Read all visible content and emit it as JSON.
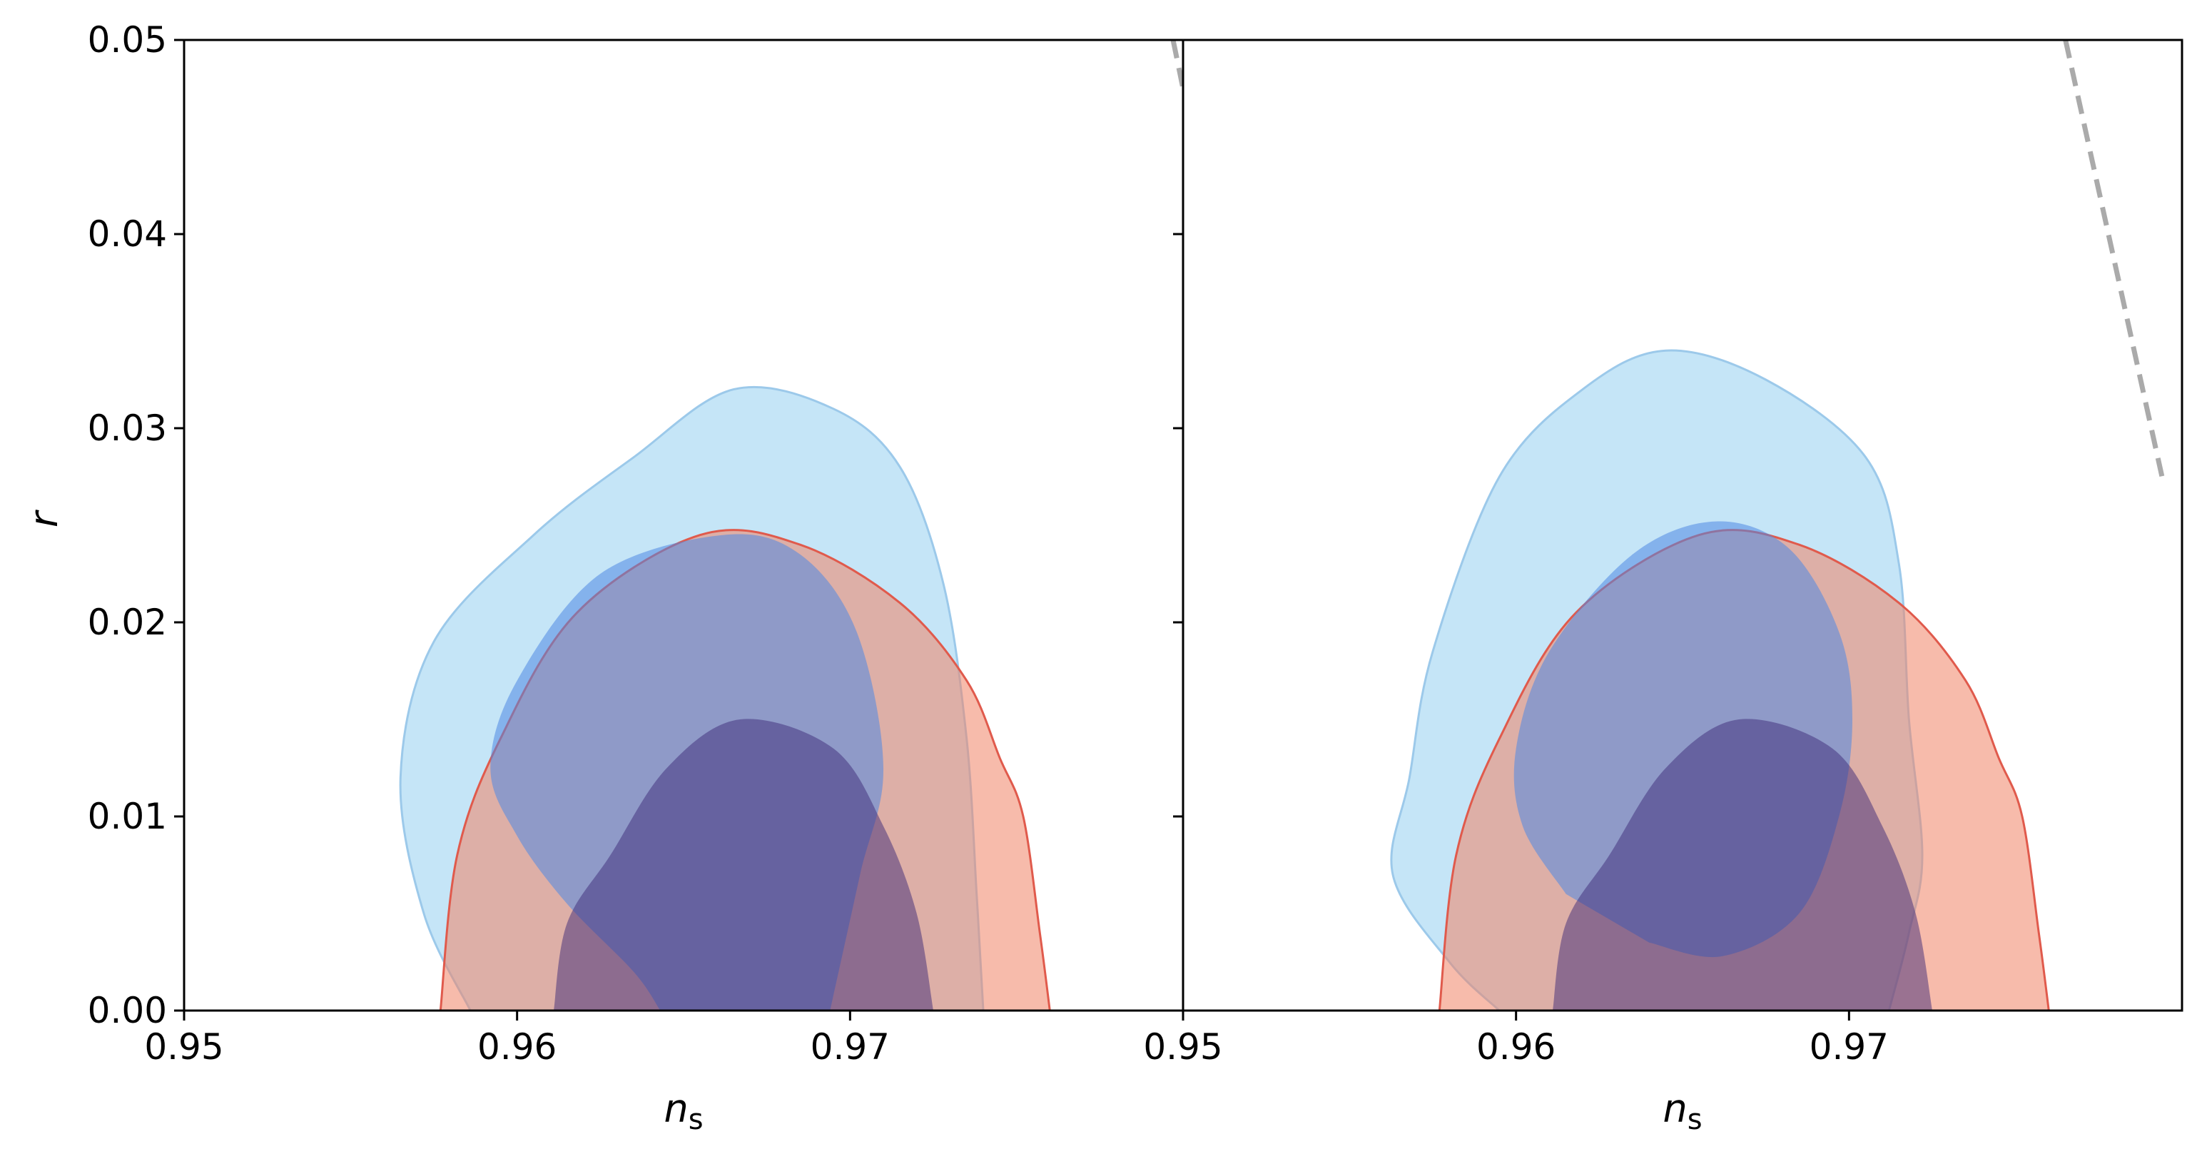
{
  "chart_data": {
    "type": "contour",
    "xlabel": "n",
    "xlabel_sub": "s",
    "ylabel": "r",
    "yticks": [
      0.0,
      0.01,
      0.02,
      0.03,
      0.04,
      0.05
    ],
    "ytick_labels": [
      "0.00",
      "0.01",
      "0.02",
      "0.03",
      "0.04",
      "0.05"
    ],
    "grid": false,
    "colors": {
      "light_blue": "#9fd3f2",
      "mid_blue": "#4f88e3",
      "purple": "#3d2a78",
      "salmon": "#f08466",
      "red_line": "#e05a4c",
      "reference_line": "#aaaaaa"
    },
    "panels": [
      {
        "xlim": [
          0.95,
          0.98
        ],
        "ylim": [
          0,
          0.05
        ],
        "xticks": [
          0.95,
          0.96,
          0.97
        ],
        "xtick_labels": [
          "0.95",
          "0.96",
          "0.97"
        ],
        "contours": [
          {
            "level": "95%",
            "fill": "#9fd3f2",
            "opacity": 0.6,
            "stroke": "#9cc9ea",
            "points": [
              [
                0.9586,
                0
              ],
              [
                0.9572,
                0.005
              ],
              [
                0.9565,
                0.012
              ],
              [
                0.9575,
                0.019
              ],
              [
                0.9605,
                0.0245
              ],
              [
                0.9635,
                0.0285
              ],
              [
                0.9665,
                0.032
              ],
              [
                0.9695,
                0.031
              ],
              [
                0.9715,
                0.028
              ],
              [
                0.9728,
                0.022
              ],
              [
                0.9735,
                0.014
              ],
              [
                0.9738,
                0.006
              ],
              [
                0.974,
                0
              ]
            ]
          },
          {
            "level": "95%",
            "fill": "#f08466",
            "opacity": 0.55,
            "stroke": "#e05a4c",
            "points": [
              [
                0.9577,
                0
              ],
              [
                0.9582,
                0.008
              ],
              [
                0.9595,
                0.014
              ],
              [
                0.9618,
                0.0205
              ],
              [
                0.9655,
                0.0245
              ],
              [
                0.9685,
                0.024
              ],
              [
                0.9715,
                0.021
              ],
              [
                0.9735,
                0.017
              ],
              [
                0.9745,
                0.013
              ],
              [
                0.9752,
                0.01
              ],
              [
                0.9757,
                0.004
              ],
              [
                0.976,
                0
              ]
            ]
          },
          {
            "level": "68%",
            "fill": "#4f88e3",
            "opacity": 0.55,
            "stroke": "none",
            "points": [
              [
                0.9643,
                0
              ],
              [
                0.9635,
                0.002
              ],
              [
                0.9615,
                0.0055
              ],
              [
                0.96,
                0.009
              ],
              [
                0.9592,
                0.0125
              ],
              [
                0.96,
                0.017
              ],
              [
                0.9625,
                0.0225
              ],
              [
                0.9662,
                0.0245
              ],
              [
                0.9685,
                0.0235
              ],
              [
                0.9702,
                0.0195
              ],
              [
                0.971,
                0.0125
              ],
              [
                0.9703,
                0.007
              ],
              [
                0.9694,
                0
              ]
            ]
          },
          {
            "level": "68%",
            "fill": "#3d2a78",
            "opacity": 0.5,
            "stroke": "none",
            "points": [
              [
                0.9611,
                0
              ],
              [
                0.9615,
                0.0045
              ],
              [
                0.9628,
                0.008
              ],
              [
                0.9645,
                0.0125
              ],
              [
                0.9667,
                0.015
              ],
              [
                0.9695,
                0.0135
              ],
              [
                0.971,
                0.0095
              ],
              [
                0.972,
                0.005
              ],
              [
                0.9725,
                0
              ]
            ]
          }
        ],
        "reference_line": [
          [
            0.9797,
            0.05
          ],
          [
            0.9824,
            0.0275
          ]
        ]
      },
      {
        "xlim": [
          0.95,
          0.98
        ],
        "ylim": [
          0,
          0.05
        ],
        "xticks": [
          0.95,
          0.96,
          0.97
        ],
        "xtick_labels": [
          "0.95",
          "0.96",
          "0.97"
        ],
        "contours": [
          {
            "level": "95%",
            "fill": "#9fd3f2",
            "opacity": 0.6,
            "stroke": "#9cc9ea",
            "points": [
              [
                0.9595,
                0
              ],
              [
                0.958,
                0.0025
              ],
              [
                0.9563,
                0.007
              ],
              [
                0.9568,
                0.012
              ],
              [
                0.9575,
                0.0185
              ],
              [
                0.9595,
                0.0275
              ],
              [
                0.962,
                0.032
              ],
              [
                0.9645,
                0.034
              ],
              [
                0.9675,
                0.0325
              ],
              [
                0.9705,
                0.0285
              ],
              [
                0.9715,
                0.023
              ],
              [
                0.9718,
                0.015
              ],
              [
                0.9722,
                0.008
              ],
              [
                0.9718,
                0.004
              ],
              [
                0.9712,
                0
              ]
            ]
          },
          {
            "level": "95%",
            "fill": "#f08466",
            "opacity": 0.55,
            "stroke": "#e05a4c",
            "points": [
              [
                0.9577,
                0
              ],
              [
                0.9582,
                0.008
              ],
              [
                0.9595,
                0.014
              ],
              [
                0.9618,
                0.0205
              ],
              [
                0.9655,
                0.0245
              ],
              [
                0.9685,
                0.024
              ],
              [
                0.9715,
                0.021
              ],
              [
                0.9735,
                0.017
              ],
              [
                0.9745,
                0.013
              ],
              [
                0.9752,
                0.01
              ],
              [
                0.9757,
                0.004
              ],
              [
                0.976,
                0
              ]
            ]
          },
          {
            "level": "68%",
            "fill": "#4f88e3",
            "opacity": 0.55,
            "stroke": "none",
            "points": [
              [
                0.9615,
                0.006
              ],
              [
                0.9602,
                0.0095
              ],
              [
                0.96,
                0.0135
              ],
              [
                0.961,
                0.0185
              ],
              [
                0.9635,
                0.0235
              ],
              [
                0.966,
                0.0252
              ],
              [
                0.9682,
                0.0238
              ],
              [
                0.9697,
                0.0195
              ],
              [
                0.9701,
                0.015
              ],
              [
                0.9697,
                0.01
              ],
              [
                0.9685,
                0.005
              ],
              [
                0.9662,
                0.0028
              ],
              [
                0.964,
                0.0035
              ]
            ]
          },
          {
            "level": "68%",
            "fill": "#3d2a78",
            "opacity": 0.5,
            "stroke": "none",
            "points": [
              [
                0.9611,
                0
              ],
              [
                0.9615,
                0.0045
              ],
              [
                0.9628,
                0.008
              ],
              [
                0.9645,
                0.0125
              ],
              [
                0.9667,
                0.015
              ],
              [
                0.9695,
                0.0135
              ],
              [
                0.971,
                0.0095
              ],
              [
                0.972,
                0.005
              ],
              [
                0.9725,
                0
              ]
            ]
          }
        ],
        "reference_line": [
          [
            0.9765,
            0.05
          ],
          [
            0.9794,
            0.0275
          ]
        ]
      }
    ]
  }
}
